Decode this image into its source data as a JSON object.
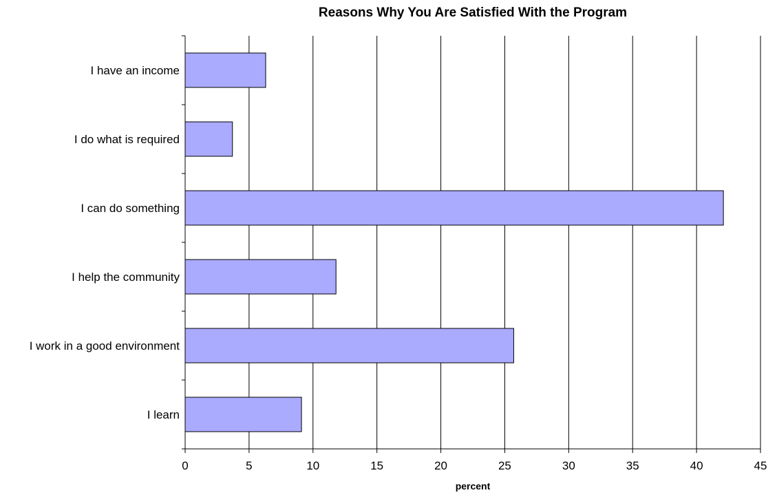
{
  "chart_data": {
    "type": "bar",
    "orientation": "horizontal",
    "title": "Reasons Why You Are Satisfied With the Program",
    "xlabel": "percent",
    "ylabel": "",
    "categories": [
      "I have an income",
      "I do what is required",
      "I can do something",
      "I help the community",
      "I work in a good environment",
      "I learn"
    ],
    "values": [
      6.3,
      3.7,
      42.1,
      11.8,
      25.7,
      9.1
    ],
    "xlim": [
      0,
      45
    ],
    "xticks": [
      0,
      5,
      10,
      15,
      20,
      25,
      30,
      35,
      40,
      45
    ],
    "grid": "vertical",
    "legend": "none",
    "bar_color": "#aaaaff",
    "bar_edge_color": "#000000"
  }
}
